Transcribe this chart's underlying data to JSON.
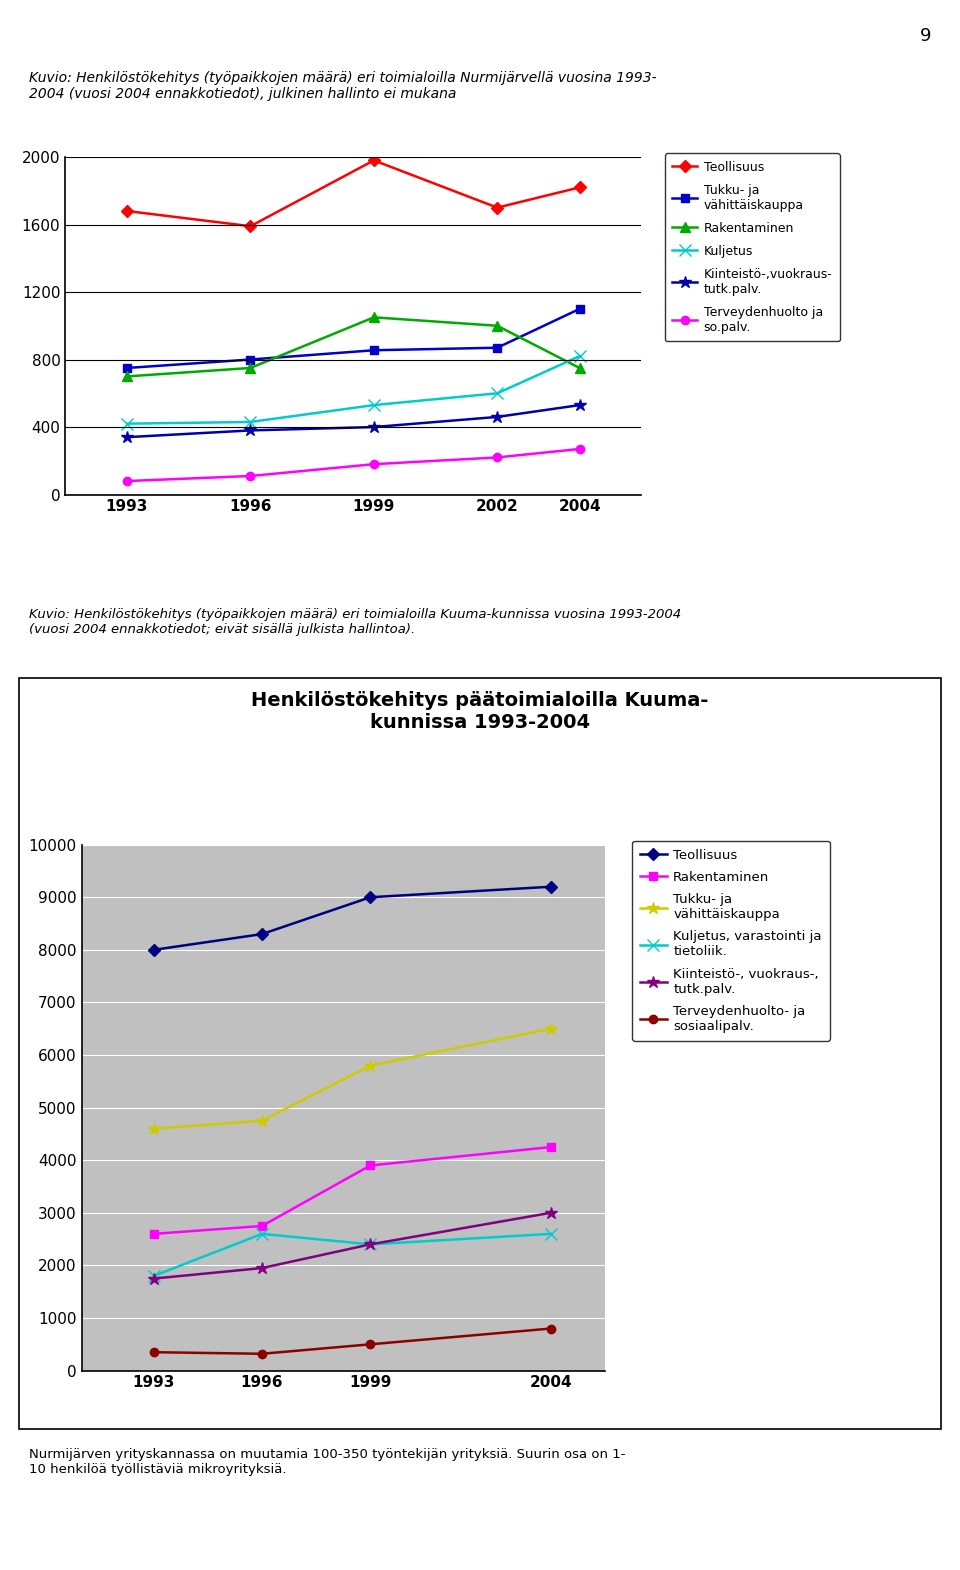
{
  "page_number": "9",
  "chart1": {
    "title": "Kuvio: Henkilöstökehitys (työpaikkojen määrä) eri toimialoilla Nurmijärvellä vuosina 1993-\n2004 (vuosi 2004 ennakkotiedot), julkinen hallinto ei mukana",
    "years": [
      1993,
      1996,
      1999,
      2002,
      2004
    ],
    "ylim": [
      0,
      2000
    ],
    "yticks": [
      0,
      400,
      800,
      1200,
      1600,
      2000
    ],
    "series": [
      {
        "label": "Teollisuus",
        "color": "#FF0000",
        "marker": "D",
        "markersize": 6,
        "values": [
          1680,
          1590,
          1980,
          1700,
          1820
        ]
      },
      {
        "label": "Tukku- ja\nvähittäiskauppa",
        "color": "#0000CC",
        "marker": "s",
        "markersize": 6,
        "values": [
          750,
          800,
          855,
          870,
          1100
        ]
      },
      {
        "label": "Rakentaminen",
        "color": "#00AA00",
        "marker": "^",
        "markersize": 7,
        "values": [
          700,
          750,
          1050,
          1000,
          750
        ]
      },
      {
        "label": "Kuljetus",
        "color": "#00CCCC",
        "marker": "x",
        "markersize": 8,
        "values": [
          420,
          430,
          530,
          600,
          820
        ]
      },
      {
        "label": "Kiinteistö-,vuokraus-\ntutk.palv.",
        "color": "#0000AA",
        "marker": "*",
        "markersize": 9,
        "values": [
          340,
          380,
          400,
          460,
          530
        ]
      },
      {
        "label": "Terveydenhuolto ja\nso.palv.",
        "color": "#FF00FF",
        "marker": "o",
        "markersize": 6,
        "values": [
          80,
          110,
          180,
          220,
          270
        ]
      }
    ]
  },
  "between_text": "Kuvio: Henkilöstökehitys (työpaikkojen määrä) eri toimialoilla Kuuma-kunnissa vuosina 1993-2004\n(vuosi 2004 ennakkotiedot; eivät sisällä julkista hallintoa).",
  "chart2": {
    "title": "Henkilöstökehitys päätoimialoilla Kuuma-\nkunnissa 1993-2004",
    "years": [
      1993,
      1996,
      1999,
      2004
    ],
    "ylim": [
      0,
      10000
    ],
    "yticks": [
      0,
      1000,
      2000,
      3000,
      4000,
      5000,
      6000,
      7000,
      8000,
      9000,
      10000
    ],
    "bg_color": "#C0C0C0",
    "series": [
      {
        "label": "Teollisuus",
        "color": "#000080",
        "marker": "D",
        "markersize": 6,
        "values": [
          8000,
          8300,
          9000,
          9200
        ]
      },
      {
        "label": "Rakentaminen",
        "color": "#FF00FF",
        "marker": "s",
        "markersize": 6,
        "values": [
          2600,
          2750,
          3900,
          4250
        ]
      },
      {
        "label": "Tukku- ja\nvähittäiskauppa",
        "color": "#CCCC00",
        "marker": "*",
        "markersize": 9,
        "values": [
          4600,
          4750,
          5800,
          6500
        ]
      },
      {
        "label": "Kuljetus, varastointi ja\ntietoliik.",
        "color": "#00CCCC",
        "marker": "x",
        "markersize": 8,
        "values": [
          1800,
          2600,
          2400,
          2600
        ]
      },
      {
        "label": "Kiinteistö-, vuokraus-,\ntutk.palv.",
        "color": "#800080",
        "marker": "*",
        "markersize": 9,
        "values": [
          1750,
          1950,
          2400,
          3000
        ]
      },
      {
        "label": "Terveydenhuolto- ja\nsosiaalipalv.",
        "color": "#8B0000",
        "marker": "o",
        "markersize": 6,
        "values": [
          350,
          320,
          500,
          800
        ]
      }
    ]
  },
  "footer_text": "Nurmijärven yrityskannassa on muutamia 100-350 työntekijän yrityksiä. Suurin osa on 1-\n10 henkilöä työllistäviä mikroyrityksiä."
}
